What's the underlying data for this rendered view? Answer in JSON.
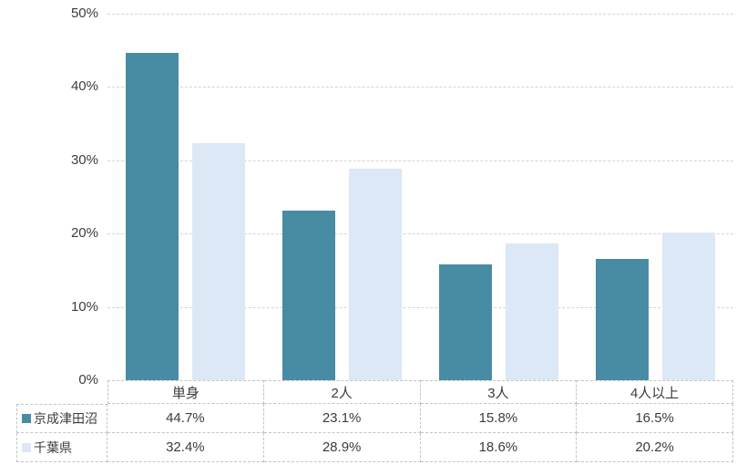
{
  "chart_data": {
    "type": "bar",
    "title": "",
    "categories": [
      "単身",
      "2人",
      "3人",
      "4人以上"
    ],
    "series": [
      {
        "name": "京成津田沼",
        "color": "#488CA3",
        "values": [
          44.7,
          23.1,
          15.8,
          16.5
        ],
        "labels": [
          "44.7%",
          "23.1%",
          "15.8%",
          "16.5%"
        ]
      },
      {
        "name": "千葉県",
        "color": "#DCE8F5",
        "values": [
          32.4,
          28.9,
          18.6,
          20.2
        ],
        "labels": [
          "32.4%",
          "28.9%",
          "18.6%",
          "20.2%"
        ]
      }
    ],
    "ylim": [
      0,
      50
    ],
    "y_ticks": [
      {
        "v": 50,
        "label": "50%"
      },
      {
        "v": 40,
        "label": "40%"
      },
      {
        "v": 30,
        "label": "30%"
      },
      {
        "v": 20,
        "label": "20%"
      },
      {
        "v": 10,
        "label": "10%"
      },
      {
        "v": 0,
        "label": "0%"
      }
    ],
    "grid": "horizontal-dashed",
    "legend_position": "data-table-left",
    "gridline_color": "#D4D4D4",
    "table_border_color": "#C3C3C3"
  }
}
